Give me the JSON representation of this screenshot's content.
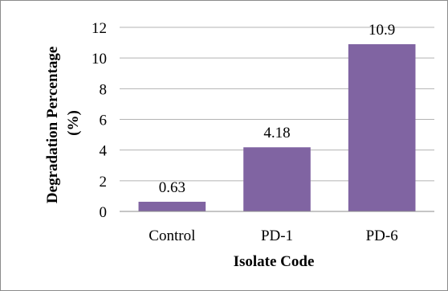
{
  "chart_data": {
    "type": "bar",
    "categories": [
      "Control",
      "PD-1",
      "PD-6"
    ],
    "values": [
      0.63,
      4.18,
      10.9
    ],
    "data_labels": [
      "0.63",
      "4.18",
      "10.9"
    ],
    "title": "",
    "xlabel": "Isolate Code",
    "ylabel_line1": "Degradation Percentage",
    "ylabel_line2": "(%)",
    "ylim": [
      0,
      12
    ],
    "yticks": [
      "0",
      "2",
      "4",
      "6",
      "8",
      "10",
      "12"
    ],
    "grid": true,
    "bar_color": "#8064a2",
    "grid_color": "#b3b3b3"
  }
}
